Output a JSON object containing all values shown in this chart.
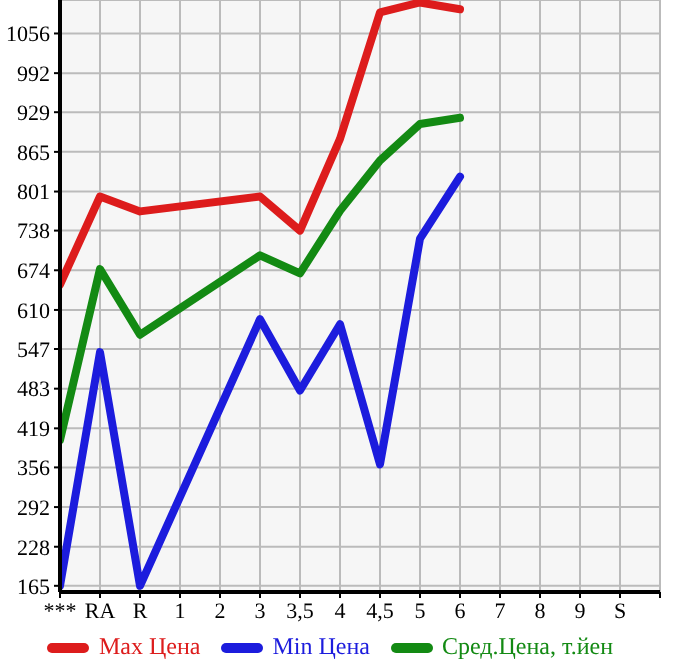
{
  "chart_data": {
    "type": "line",
    "categories": [
      "***",
      "RA",
      "R",
      "1",
      "2",
      "3",
      "3,5",
      "4",
      "4,5",
      "5",
      "6",
      "7",
      "8",
      "9",
      "S"
    ],
    "series": [
      {
        "name": "Max Цена",
        "color": "#dd1c1c",
        "values": [
          651,
          793,
          769,
          null,
          null,
          793,
          738,
          886,
          1090,
          1106,
          1095,
          null,
          null,
          null,
          null
        ]
      },
      {
        "name": "Min Цена",
        "color": "#1c1cdd",
        "values": [
          165,
          542,
          165,
          null,
          null,
          595,
          480,
          587,
          361,
          725,
          825,
          null,
          null,
          null,
          null
        ]
      },
      {
        "name": "Сред.Цена, т.йен",
        "color": "#138a13",
        "values": [
          400,
          676,
          570,
          null,
          null,
          698,
          669,
          770,
          851,
          910,
          920,
          null,
          null,
          null,
          null
        ]
      }
    ],
    "ylim": [
      155,
      1110
    ],
    "yticks": [
      165,
      228,
      292,
      356,
      419,
      483,
      547,
      610,
      674,
      738,
      801,
      865,
      929,
      992,
      1056
    ],
    "grid": true,
    "legend": "bottom",
    "marker": "none",
    "line_style": "solid"
  }
}
